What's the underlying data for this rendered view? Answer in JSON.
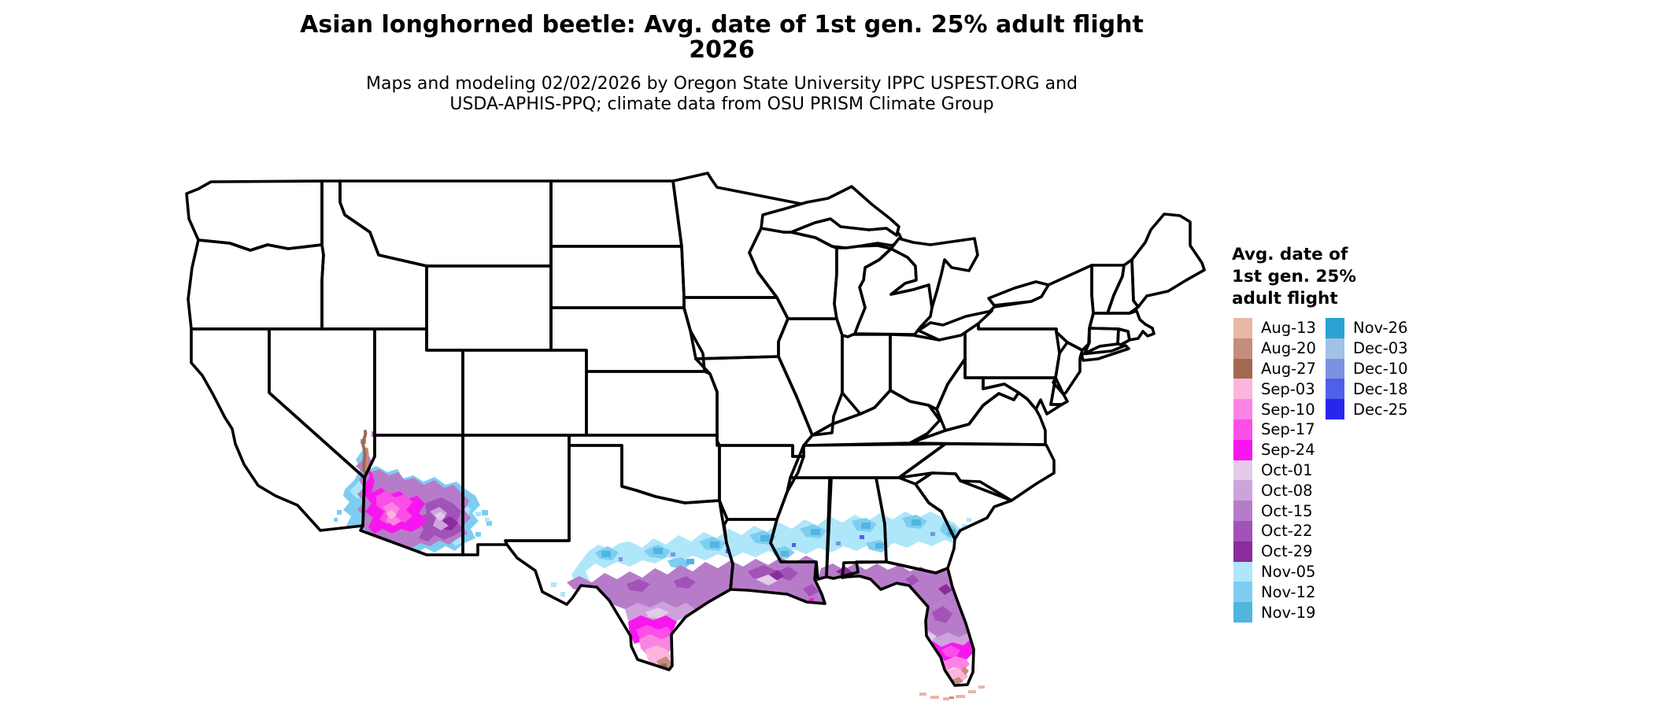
{
  "title": {
    "line1": "Asian longhorned beetle: Avg. date of 1st gen. 25% adult flight",
    "line2": "2026"
  },
  "subtitle": {
    "line1": "Maps and modeling 02/02/2026 by Oregon State University IPPC USPEST.ORG and",
    "line2": "USDA-APHIS-PPQ; climate data from OSU PRISM Climate Group"
  },
  "legend": {
    "title_lines": [
      "Avg. date of",
      "1st gen. 25%",
      "adult flight"
    ],
    "entries": [
      {
        "label": "Aug-13",
        "color": "#e8b7a6"
      },
      {
        "label": "Aug-20",
        "color": "#c48d7d"
      },
      {
        "label": "Aug-27",
        "color": "#a26852"
      },
      {
        "label": "Sep-03",
        "color": "#fcb5dd"
      },
      {
        "label": "Sep-10",
        "color": "#fb84e3"
      },
      {
        "label": "Sep-17",
        "color": "#fb4fe8"
      },
      {
        "label": "Sep-24",
        "color": "#f816ee"
      },
      {
        "label": "Oct-01",
        "color": "#e3cbe9"
      },
      {
        "label": "Oct-08",
        "color": "#cda3dc"
      },
      {
        "label": "Oct-15",
        "color": "#b77cc9"
      },
      {
        "label": "Oct-22",
        "color": "#a352b7"
      },
      {
        "label": "Oct-29",
        "color": "#8b2b9e"
      },
      {
        "label": "Nov-05",
        "color": "#aee6fa"
      },
      {
        "label": "Nov-12",
        "color": "#7ecdf0"
      },
      {
        "label": "Nov-19",
        "color": "#51b5e2"
      },
      {
        "label": "Nov-26",
        "color": "#2ba2d6"
      },
      {
        "label": "Dec-03",
        "color": "#9fc2e6"
      },
      {
        "label": "Dec-10",
        "color": "#7b92e3"
      },
      {
        "label": "Dec-18",
        "color": "#4f60e8"
      },
      {
        "label": "Dec-25",
        "color": "#2726ee"
      }
    ],
    "column_split": [
      15,
      5
    ]
  },
  "map": {
    "area": "Contiguous United States state outline map",
    "border_color": "#000000",
    "water_color": "#ffffff",
    "colored_regions": [
      "southeastern California and southern Arizona",
      "southern New Mexico specks",
      "southern and coastal Texas",
      "Gulf Coast band through Louisiana, Mississippi, Alabama",
      "southern Georgia to the Atlantic coast",
      "Florida peninsula",
      "Florida Keys"
    ]
  }
}
